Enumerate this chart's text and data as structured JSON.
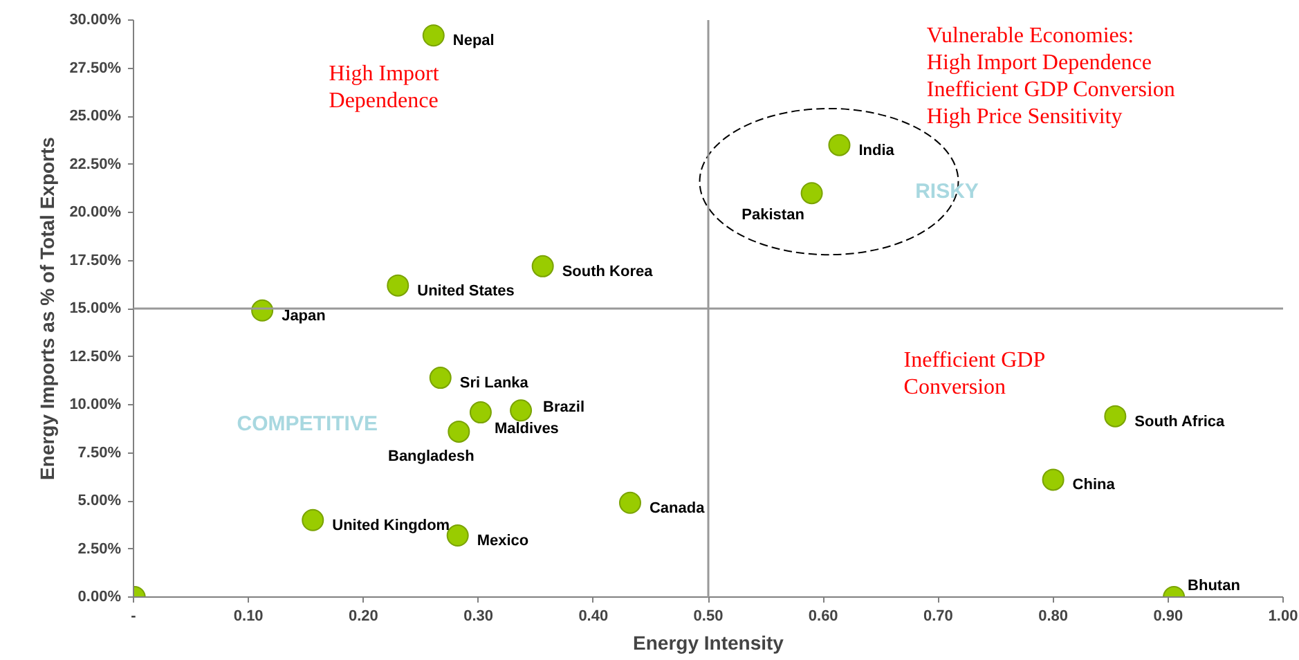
{
  "chart_data": {
    "type": "scatter",
    "xlabel": "Energy Intensity",
    "ylabel": "Energy Imports as % of Total Exports",
    "x": [
      0.261,
      0.614,
      0.59,
      0.356,
      0.23,
      0.112,
      0.267,
      0.337,
      0.302,
      0.283,
      0.854,
      0.8,
      0.432,
      0.156,
      0.282,
      0.905,
      0.001
    ],
    "series": [
      {
        "color": "#99cc00",
        "values": [
          29.2,
          23.5,
          21.0,
          17.2,
          16.2,
          14.9,
          11.4,
          9.7,
          9.6,
          8.6,
          9.4,
          6.1,
          4.9,
          4.0,
          3.2,
          0.0,
          0.0
        ]
      }
    ],
    "marker": "circle",
    "grid": false,
    "xlim": [
      0,
      1.0
    ],
    "ylim": [
      0,
      30
    ],
    "xticks": [
      {
        "value": 0,
        "label": "-"
      },
      {
        "value": 0.1,
        "label": "0.10"
      },
      {
        "value": 0.2,
        "label": "0.20"
      },
      {
        "value": 0.3,
        "label": "0.30"
      },
      {
        "value": 0.4,
        "label": "0.40"
      },
      {
        "value": 0.5,
        "label": "0.50"
      },
      {
        "value": 0.6,
        "label": "0.60"
      },
      {
        "value": 0.7,
        "label": "0.70"
      },
      {
        "value": 0.8,
        "label": "0.80"
      },
      {
        "value": 0.9,
        "label": "0.90"
      },
      {
        "value": 1.0,
        "label": "1.00"
      }
    ],
    "yticks": [
      {
        "value": 0,
        "label": "0.00%"
      },
      {
        "value": 2.5,
        "label": "2.50%"
      },
      {
        "value": 5,
        "label": "5.00%"
      },
      {
        "value": 7.5,
        "label": "7.50%"
      },
      {
        "value": 10,
        "label": "10.00%"
      },
      {
        "value": 12.5,
        "label": "12.50%"
      },
      {
        "value": 15,
        "label": "15.00%"
      },
      {
        "value": 17.5,
        "label": "17.50%"
      },
      {
        "value": 20,
        "label": "20.00%"
      },
      {
        "value": 22.5,
        "label": "22.50%"
      },
      {
        "value": 25,
        "label": "25.00%"
      },
      {
        "value": 27.5,
        "label": "27.50%"
      },
      {
        "value": 30,
        "label": "30.00%"
      }
    ],
    "ref_lines": [
      {
        "axis": "x",
        "value": 0.5,
        "color": "#999999"
      },
      {
        "axis": "y",
        "value": 15,
        "color": "#999999"
      }
    ],
    "annotations": [
      {
        "text": "Nepal",
        "x": 0.261,
        "y": 29.2
      },
      {
        "text": "India",
        "x": 0.614,
        "y": 23.5
      },
      {
        "text": "Pakistan",
        "x": 0.59,
        "y": 21.0
      },
      {
        "text": "South Korea",
        "x": 0.356,
        "y": 17.2
      },
      {
        "text": "United States",
        "x": 0.23,
        "y": 16.2
      },
      {
        "text": "Japan",
        "x": 0.112,
        "y": 14.9
      },
      {
        "text": "Sri Lanka",
        "x": 0.267,
        "y": 11.4
      },
      {
        "text": "Brazil",
        "x": 0.337,
        "y": 9.7
      },
      {
        "text": "Maldives",
        "x": 0.302,
        "y": 9.6
      },
      {
        "text": "Bangladesh",
        "x": 0.283,
        "y": 8.6
      },
      {
        "text": "South Africa",
        "x": 0.854,
        "y": 9.4
      },
      {
        "text": "China",
        "x": 0.8,
        "y": 6.1
      },
      {
        "text": "Canada",
        "x": 0.432,
        "y": 4.9
      },
      {
        "text": "United Kingdom",
        "x": 0.156,
        "y": 4.0
      },
      {
        "text": "Mexico",
        "x": 0.282,
        "y": 3.2
      },
      {
        "text": "Bhutan",
        "x": 0.905,
        "y": 0.0
      },
      "High Import\nDependence",
      "Vulnerable Economies:\nHigh Import Dependence\nInefficient GDP Conversion\nHigh Price Sensitivity",
      "Inefficient GDP\nConversion",
      "RISKY",
      "COMPETITIVE"
    ]
  }
}
